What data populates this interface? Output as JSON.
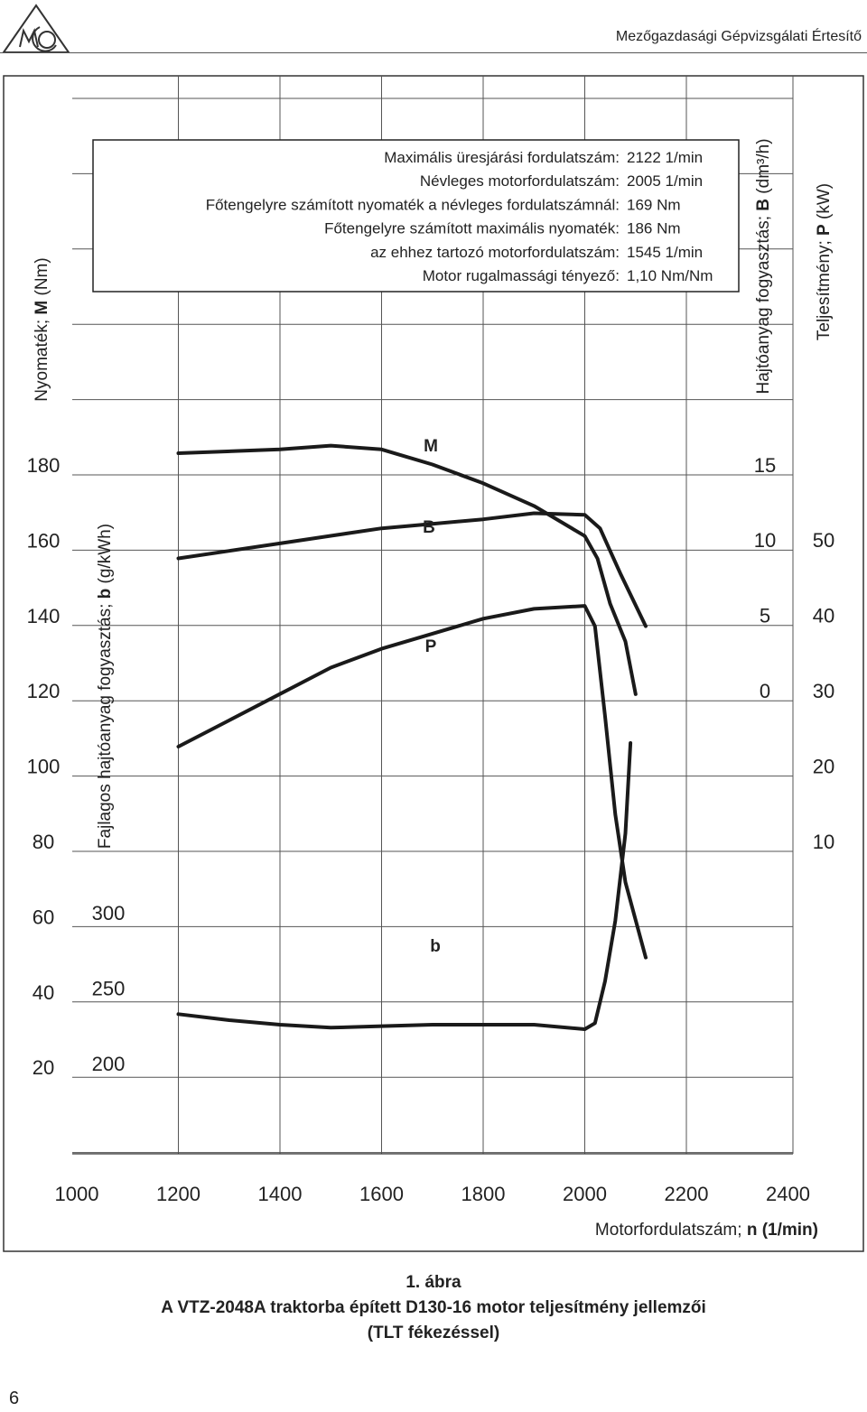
{
  "header": {
    "journal": "Mezőgazdasági Gépvizsgálati Értesítő",
    "logo_icon": "mgi-logo-icon"
  },
  "page_number": "6",
  "caption": {
    "line1": "1. ábra",
    "line2": "A VTZ-2048A traktorba épített D130-16 motor teljesítmény jellemzői",
    "line3": "(TLT fékezéssel)"
  },
  "chart_data": {
    "type": "line",
    "info_box": [
      {
        "label": "Maximális üresjárási fordulatszám:",
        "value": "2122 1/min"
      },
      {
        "label": "Névleges motorfordulatszám:",
        "value": "2005 1/min"
      },
      {
        "label": "Főtengelyre számított nyomaték a névleges fordulatszámnál:",
        "value": "169 Nm"
      },
      {
        "label": "Főtengelyre számított maximális nyomaték:",
        "value": "186 Nm"
      },
      {
        "label": "az ehhez tartozó motorfordulatszám:",
        "value": "1545 1/min"
      },
      {
        "label": "Motor rugalmassági tényező:",
        "value": "1,10 Nm/Nm"
      }
    ],
    "x_axis": {
      "label_prefix": "Motorfordulatszám; ",
      "label_symbol": "n",
      "label_unit": " (1/min)",
      "ticks": [
        "1000",
        "1200",
        "1400",
        "1600",
        "1800",
        "2000",
        "2200",
        "2400"
      ],
      "range": [
        1000,
        2400
      ]
    },
    "y_axes": {
      "torque": {
        "label_prefix": "Nyomaték; ",
        "label_symbol": "M",
        "label_unit": " (Nm)",
        "ticks": [
          "20",
          "40",
          "60",
          "80",
          "100",
          "120",
          "140",
          "160",
          "180"
        ]
      },
      "specific_fuel": {
        "label_prefix": "Fajlagos hajtóanyag fogyasztás; ",
        "label_symbol": "b",
        "label_unit": " (g/kWh)",
        "ticks": [
          "200",
          "250",
          "300"
        ]
      },
      "fuel": {
        "label_prefix": "Hajtóanyag fogyasztás; ",
        "label_symbol": "B",
        "label_unit": " (dm³/h)",
        "ticks": [
          "0",
          "5",
          "10",
          "15"
        ]
      },
      "power": {
        "label_prefix": "Teljesítmény; ",
        "label_symbol": "P",
        "label_unit": " (kW)",
        "ticks": [
          "10",
          "20",
          "30",
          "40",
          "50"
        ]
      }
    },
    "series": [
      {
        "name": "M",
        "axis": "torque",
        "points": [
          [
            1200,
            186
          ],
          [
            1400,
            187
          ],
          [
            1500,
            188
          ],
          [
            1600,
            187
          ],
          [
            1700,
            183
          ],
          [
            1800,
            178
          ],
          [
            1900,
            172
          ],
          [
            1950,
            168
          ],
          [
            2000,
            164
          ],
          [
            2025,
            158
          ],
          [
            2050,
            146
          ],
          [
            2080,
            136
          ],
          [
            2100,
            122
          ]
        ]
      },
      {
        "name": "B",
        "axis": "fuel",
        "points": [
          [
            1200,
            9.5
          ],
          [
            1300,
            10.0
          ],
          [
            1400,
            10.5
          ],
          [
            1500,
            11.0
          ],
          [
            1600,
            11.5
          ],
          [
            1700,
            11.8
          ],
          [
            1800,
            12.1
          ],
          [
            1900,
            12.5
          ],
          [
            2000,
            12.4
          ],
          [
            2030,
            11.5
          ],
          [
            2050,
            10.0
          ],
          [
            2070,
            8.5
          ],
          [
            2120,
            5.0
          ]
        ]
      },
      {
        "name": "P",
        "axis": "power",
        "points": [
          [
            1200,
            24
          ],
          [
            1300,
            27.5
          ],
          [
            1400,
            31
          ],
          [
            1500,
            34.5
          ],
          [
            1600,
            37
          ],
          [
            1700,
            39
          ],
          [
            1800,
            41
          ],
          [
            1900,
            42.3
          ],
          [
            2000,
            42.7
          ],
          [
            2020,
            40
          ],
          [
            2040,
            28
          ],
          [
            2060,
            15
          ],
          [
            2080,
            6
          ],
          [
            2120,
            -4
          ]
        ]
      },
      {
        "name": "b",
        "axis": "specific_fuel",
        "points": [
          [
            1200,
            240
          ],
          [
            1300,
            236
          ],
          [
            1400,
            233
          ],
          [
            1500,
            231
          ],
          [
            1600,
            232
          ],
          [
            1700,
            233
          ],
          [
            1800,
            233
          ],
          [
            1900,
            233
          ],
          [
            2000,
            230
          ],
          [
            2020,
            234
          ],
          [
            2040,
            262
          ],
          [
            2060,
            302
          ],
          [
            2080,
            360
          ],
          [
            2090,
            420
          ]
        ]
      }
    ]
  }
}
